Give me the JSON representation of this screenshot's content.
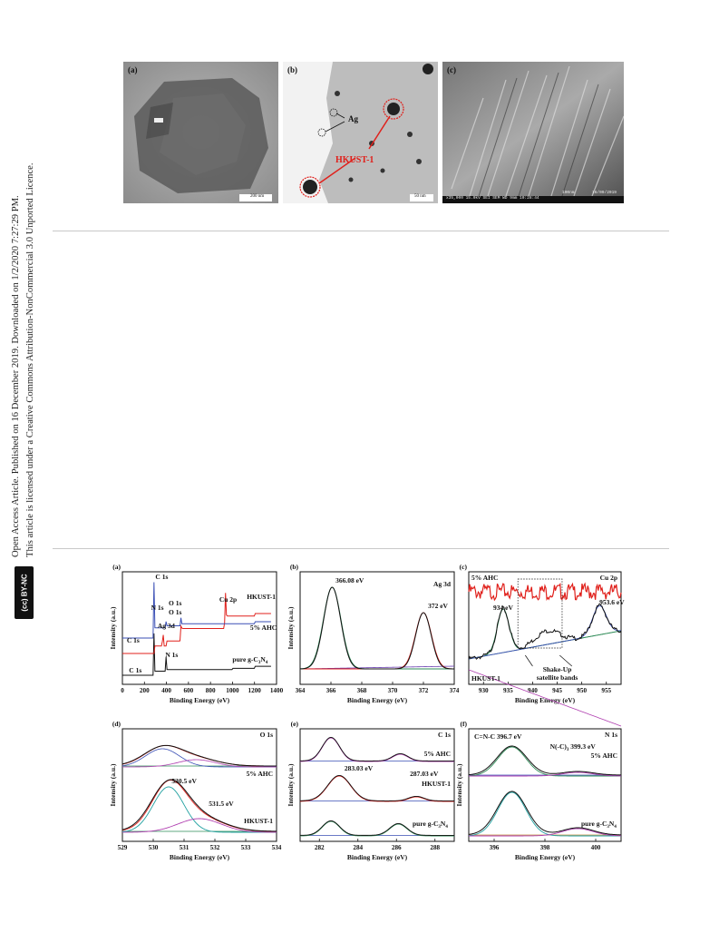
{
  "sidebar": {
    "line1": "Open Access Article. Published on 16 December 2019. Downloaded on 1/2/2020 7:27:29 PM.",
    "line2": "This article is licensed under a Creative Commons Attribution-NonCommercial 3.0 Unported Licence.",
    "badge": "(cc) BY-NC"
  },
  "top_figure": {
    "a": {
      "label": "(a)",
      "scale": "200 nm"
    },
    "b": {
      "label": "(b)",
      "ag": "Ag",
      "hkust": "HKUST-1",
      "scale": "50 nm"
    },
    "c": {
      "label": "(c)",
      "footer": "x35,000  15.0kV SEI   SEM  WD 9mm  10:28:44",
      "scale": "100nm",
      "date": "16/09/2019"
    }
  },
  "chart_data": [
    {
      "panel": "(a)",
      "type": "line",
      "xlabel": "Binding Energy (eV)",
      "ylabel": "Intensity (a.u.)",
      "xlim": [
        0,
        1400
      ],
      "xticks": [
        "0",
        "200",
        "400",
        "600",
        "800",
        "1000",
        "1200",
        "1400"
      ],
      "series": [
        {
          "name": "HKUST-1",
          "color": "#e0201b"
        },
        {
          "name": "5% AHC",
          "color": "#3a4fb5"
        },
        {
          "name": "pure g-C3N4",
          "color": "#111111"
        }
      ],
      "annotations": [
        "C 1s",
        "N 1s",
        "O 1s",
        "O 1s",
        "Cu 2p",
        "HKUST-1",
        "Ag 3d",
        "5% AHC",
        "C 1s",
        "N 1s",
        "C 1s",
        "pure g-C",
        "3",
        "N",
        "4"
      ]
    },
    {
      "panel": "(b)",
      "type": "line",
      "xlabel": "Binding Energy (eV)",
      "ylabel": "Intensity (a.u.)",
      "xlim": [
        364,
        374
      ],
      "xticks": [
        "364",
        "366",
        "368",
        "370",
        "372",
        "374"
      ],
      "peaks": [
        {
          "x": 366.08,
          "label": "366.08 eV"
        },
        {
          "x": 372,
          "label": "372 eV"
        }
      ],
      "annotations": [
        "Ag 3d"
      ]
    },
    {
      "panel": "(c)",
      "type": "line",
      "xlabel": "Binding Energy (eV)",
      "ylabel": "",
      "xlim": [
        927,
        958
      ],
      "xticks": [
        "930",
        "935",
        "940",
        "945",
        "950",
        "955"
      ],
      "peaks": [
        {
          "x": 934,
          "label": "934 eV"
        },
        {
          "x": 953.6,
          "label": "953.6 eV"
        }
      ],
      "annotations": [
        "5% AHC",
        "Cu 2p",
        "HKUST-1",
        "Shake-Up",
        "satellite bands"
      ]
    },
    {
      "panel": "(d)",
      "type": "line",
      "xlabel": "Binding Energy (eV)",
      "ylabel": "Intensity (a.u.)",
      "xlim": [
        529,
        534
      ],
      "xticks": [
        "529",
        "530",
        "531",
        "532",
        "533",
        "534"
      ],
      "peaks": [
        {
          "x": 530.5,
          "label": "530.5 eV"
        },
        {
          "x": 531.5,
          "label": "531.5 eV"
        }
      ],
      "annotations": [
        "O 1s",
        "5% AHC",
        "HKUST-1"
      ]
    },
    {
      "panel": "(e)",
      "type": "line",
      "xlabel": "Binding Energy (eV)",
      "ylabel": "Intensity (a.u.)",
      "xlim": [
        281,
        289
      ],
      "xticks": [
        "282",
        "284",
        "286",
        "288"
      ],
      "peaks": [
        {
          "x": 283.03,
          "label": "283.03 eV"
        },
        {
          "x": 287.03,
          "label": "287.03 eV"
        }
      ],
      "annotations": [
        "C 1s",
        "5% AHC",
        "HKUST-1",
        "pure g-C",
        "3",
        "N",
        "4"
      ]
    },
    {
      "panel": "(f)",
      "type": "line",
      "xlabel": "Binding Energy (eV)",
      "ylabel": "Intensity (a.u.)",
      "xlim": [
        395,
        401
      ],
      "xticks": [
        "396",
        "398",
        "400"
      ],
      "peaks": [
        {
          "x": 396.7,
          "label": "C=N-C  396.7 eV"
        },
        {
          "x": 399.3,
          "label": "N(-C)"
        }
      ],
      "annotations": [
        "N 1s",
        "3",
        "399.3 eV",
        "5% AHC",
        "pure g-C",
        "3",
        "N",
        "4"
      ]
    }
  ]
}
